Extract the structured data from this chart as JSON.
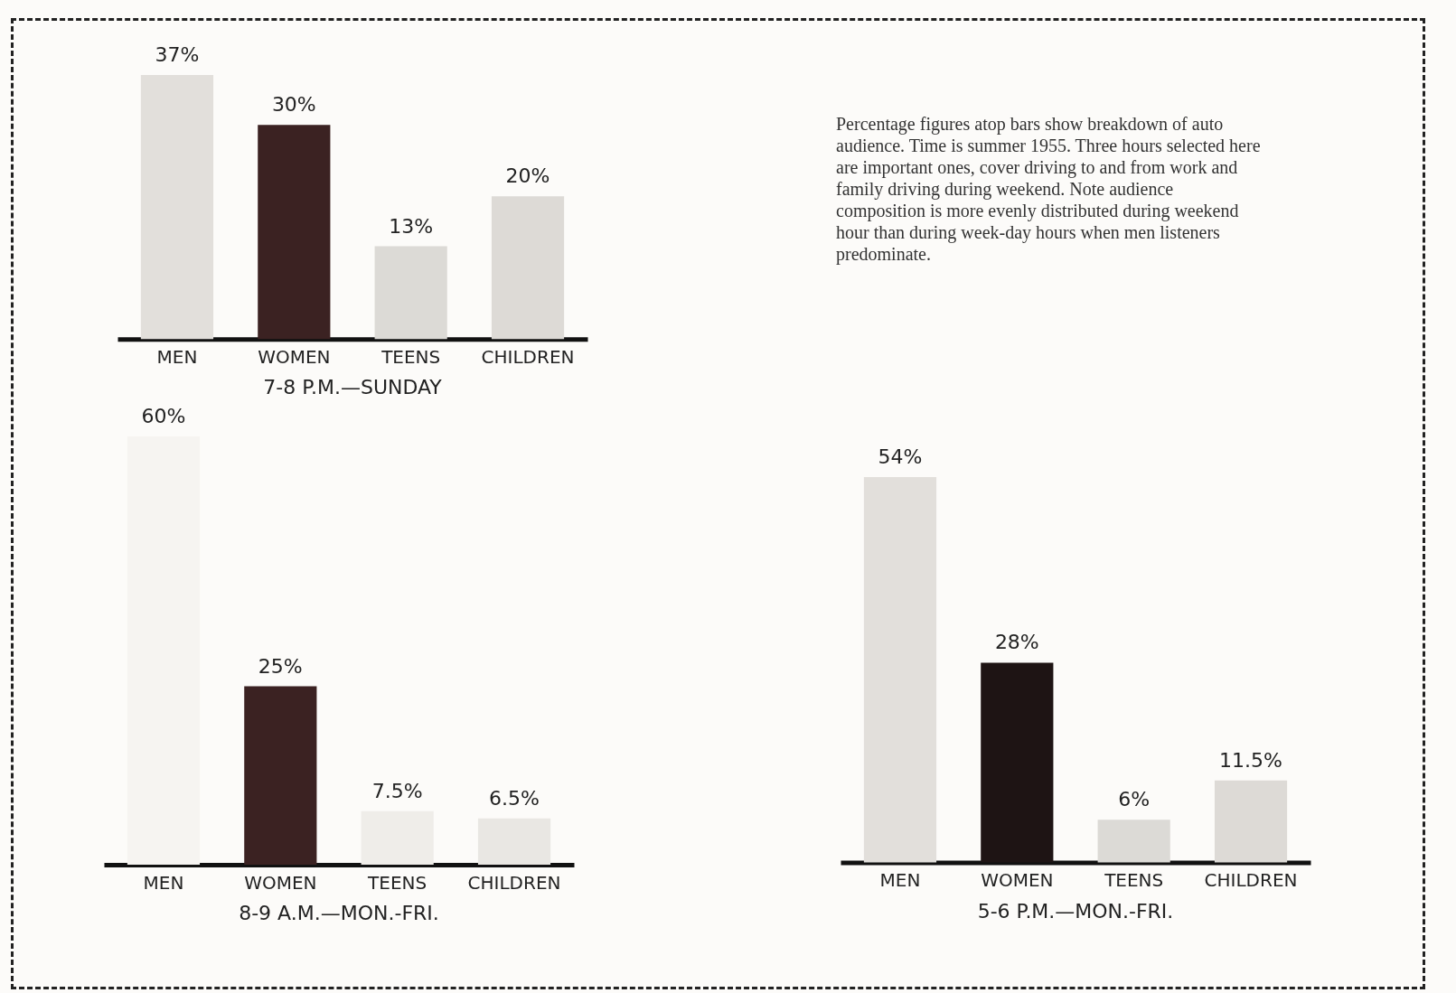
{
  "chart_data": [
    {
      "type": "bar",
      "title": "7-8 P.M.—SUNDAY",
      "categories": [
        "MEN",
        "WOMEN",
        "TEENS",
        "CHILDREN"
      ],
      "values": [
        37,
        30,
        13,
        20
      ],
      "colors": [
        "#e2dfdb",
        "#3b2222",
        "#dcdad6",
        "#dddad6"
      ],
      "value_labels": [
        "37%",
        "30%",
        "13%",
        "20%"
      ]
    },
    {
      "type": "other",
      "annotations": [
        "Percentage figures atop bars show breakdown of auto audience. Time is summer 1955. Three hours selected here are important ones, cover driving to and from work and family driving during weekend. Note audience composition is more evenly distributed during weekend hour than during week-day hours when men listeners predominate."
      ]
    },
    {
      "type": "bar",
      "title": "8-9 A.M.—MON.-FRI.",
      "categories": [
        "MEN",
        "WOMEN",
        "TEENS",
        "CHILDREN"
      ],
      "values": [
        60,
        25,
        7.5,
        6.5
      ],
      "colors": [
        "#f6f4f1",
        "#3b2222",
        "#efede9",
        "#e9e7e3"
      ],
      "value_labels": [
        "60%",
        "25%",
        "7.5%",
        "6.5%"
      ]
    },
    {
      "type": "bar",
      "title": "5-6 P.M.—MON.-FRI.",
      "categories": [
        "MEN",
        "WOMEN",
        "TEENS",
        "CHILDREN"
      ],
      "values": [
        54,
        28,
        6,
        11.5
      ],
      "colors": [
        "#e2dfdb",
        "#1e1414",
        "#dcdad6",
        "#dddad6"
      ],
      "value_labels": [
        "54%",
        "28%",
        "6%",
        "11.5%"
      ]
    }
  ]
}
